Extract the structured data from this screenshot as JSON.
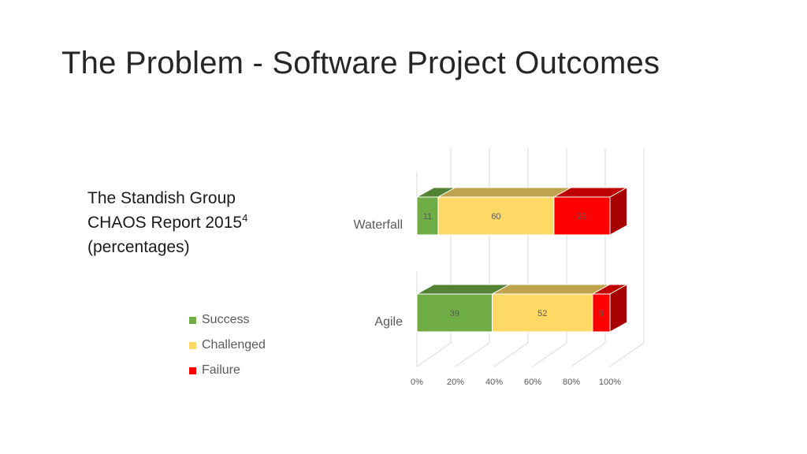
{
  "slide": {
    "title": "The Problem - Software Project Outcomes",
    "source_line1": "The Standish Group",
    "source_line2": "CHAOS Report 2015",
    "source_footnote": "4",
    "source_line3": "(percentages)"
  },
  "chart_data": {
    "type": "bar",
    "orientation": "horizontal",
    "stacked": "100%",
    "style": "3d",
    "categories": [
      "Waterfall",
      "Agile"
    ],
    "series": [
      {
        "name": "Success",
        "values": [
          11,
          39
        ],
        "color": "#70AD47"
      },
      {
        "name": "Challenged",
        "values": [
          60,
          52
        ],
        "color": "#FFD966"
      },
      {
        "name": "Failure",
        "values": [
          29,
          9
        ],
        "color": "#FF0000"
      }
    ],
    "xlim": [
      0,
      100
    ],
    "x_ticks": [
      "0%",
      "20%",
      "40%",
      "60%",
      "80%",
      "100%"
    ],
    "grid": true,
    "legend": "left"
  }
}
